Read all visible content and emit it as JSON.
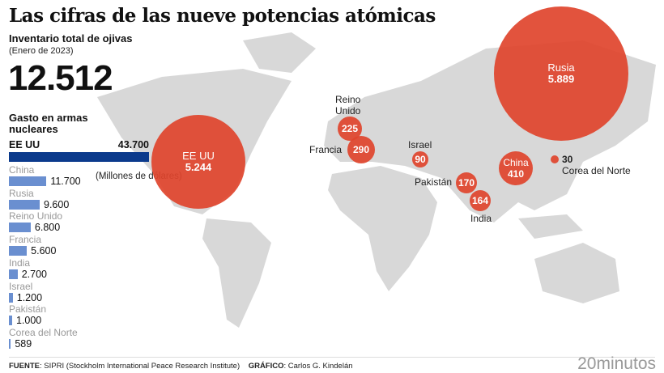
{
  "title": "Las cifras de las nueve potencias atómicas",
  "subtitle": "Inventario total de ojivas",
  "date_note": "(Enero de 2023)",
  "total": "12.512",
  "spending_title": "Gasto en armas nucleares",
  "units": "(Millones de dólares)",
  "footer": {
    "source_label": "FUENTE",
    "source": ": SIPRI (Stockholm International Peace Research Institute)",
    "credit_label": "GRÁFICO",
    "credit": ": Carlos G. Kindelán",
    "brand": "20minutos"
  },
  "colors": {
    "circle": "#e0442c",
    "bar_top": "#0b3a8c",
    "bar": "#6a8fd0",
    "map": "#d8d8d8"
  },
  "chart_data": [
    {
      "type": "bar",
      "title": "Gasto en armas nucleares",
      "ylabel": "(Millones de dólares)",
      "categories": [
        "EE UU",
        "China",
        "Rusia",
        "Reino Unido",
        "Francia",
        "India",
        "Israel",
        "Pakistán",
        "Corea del Norte"
      ],
      "values": [
        43700,
        11700,
        9600,
        6800,
        5600,
        2700,
        1200,
        1000,
        589
      ],
      "labels": [
        "43.700",
        "11.700",
        "9.600",
        "6.800",
        "5.600",
        "2.700",
        "1.200",
        "1.000",
        "589"
      ]
    },
    {
      "type": "scatter",
      "title": "Inventario total de ojivas",
      "subtype": "proportional-symbol map",
      "categories": [
        "Rusia",
        "EE UU",
        "Reino Unido",
        "Francia",
        "Israel",
        "Pakistán",
        "India",
        "China",
        "Corea del Norte"
      ],
      "values": [
        5889,
        5244,
        225,
        290,
        90,
        170,
        164,
        410,
        30
      ],
      "labels": [
        "5.889",
        "5.244",
        "225",
        "290",
        "90",
        "170",
        "164",
        "410",
        "30"
      ]
    }
  ]
}
